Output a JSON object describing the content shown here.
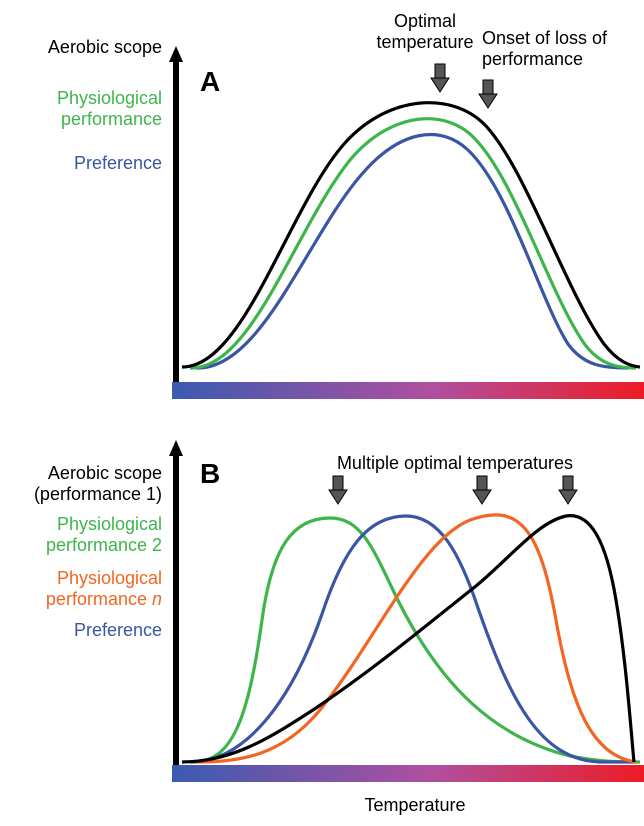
{
  "colors": {
    "aerobic_scope": "#000000",
    "physiological_performance": "#3db54a",
    "preference": "#3a55a4",
    "physiological_performance_n": "#f26522",
    "gradient_cold": "#3a5bb0",
    "gradient_mid": "#b04fa0",
    "gradient_hot": "#ed1c24",
    "arrow_fill": "#555555"
  },
  "panel_a": {
    "letter": "A",
    "legend": {
      "aerobic_scope": "Aerobic scope",
      "physiological_performance_line1": "Physiological",
      "physiological_performance_line2": "performance",
      "preference": "Preference"
    },
    "annotations": {
      "optimal_line1": "Optimal",
      "optimal_line2": "temperature",
      "onset_line1": "Onset of loss of",
      "onset_line2": "performance"
    }
  },
  "panel_b": {
    "letter": "B",
    "legend": {
      "aerobic_scope_line1": "Aerobic scope",
      "aerobic_scope_line2": "(performance 1)",
      "performance2_line1": "Physiological",
      "performance2_line2": "performance 2",
      "performance_n_line1": "Physiological",
      "performance_n_line2_text": "performance ",
      "performance_n_line2_italic": "n",
      "preference": "Preference"
    },
    "annotations": {
      "multiple_optima": "Multiple optimal temperatures"
    }
  },
  "x_axis_label": "Temperature"
}
